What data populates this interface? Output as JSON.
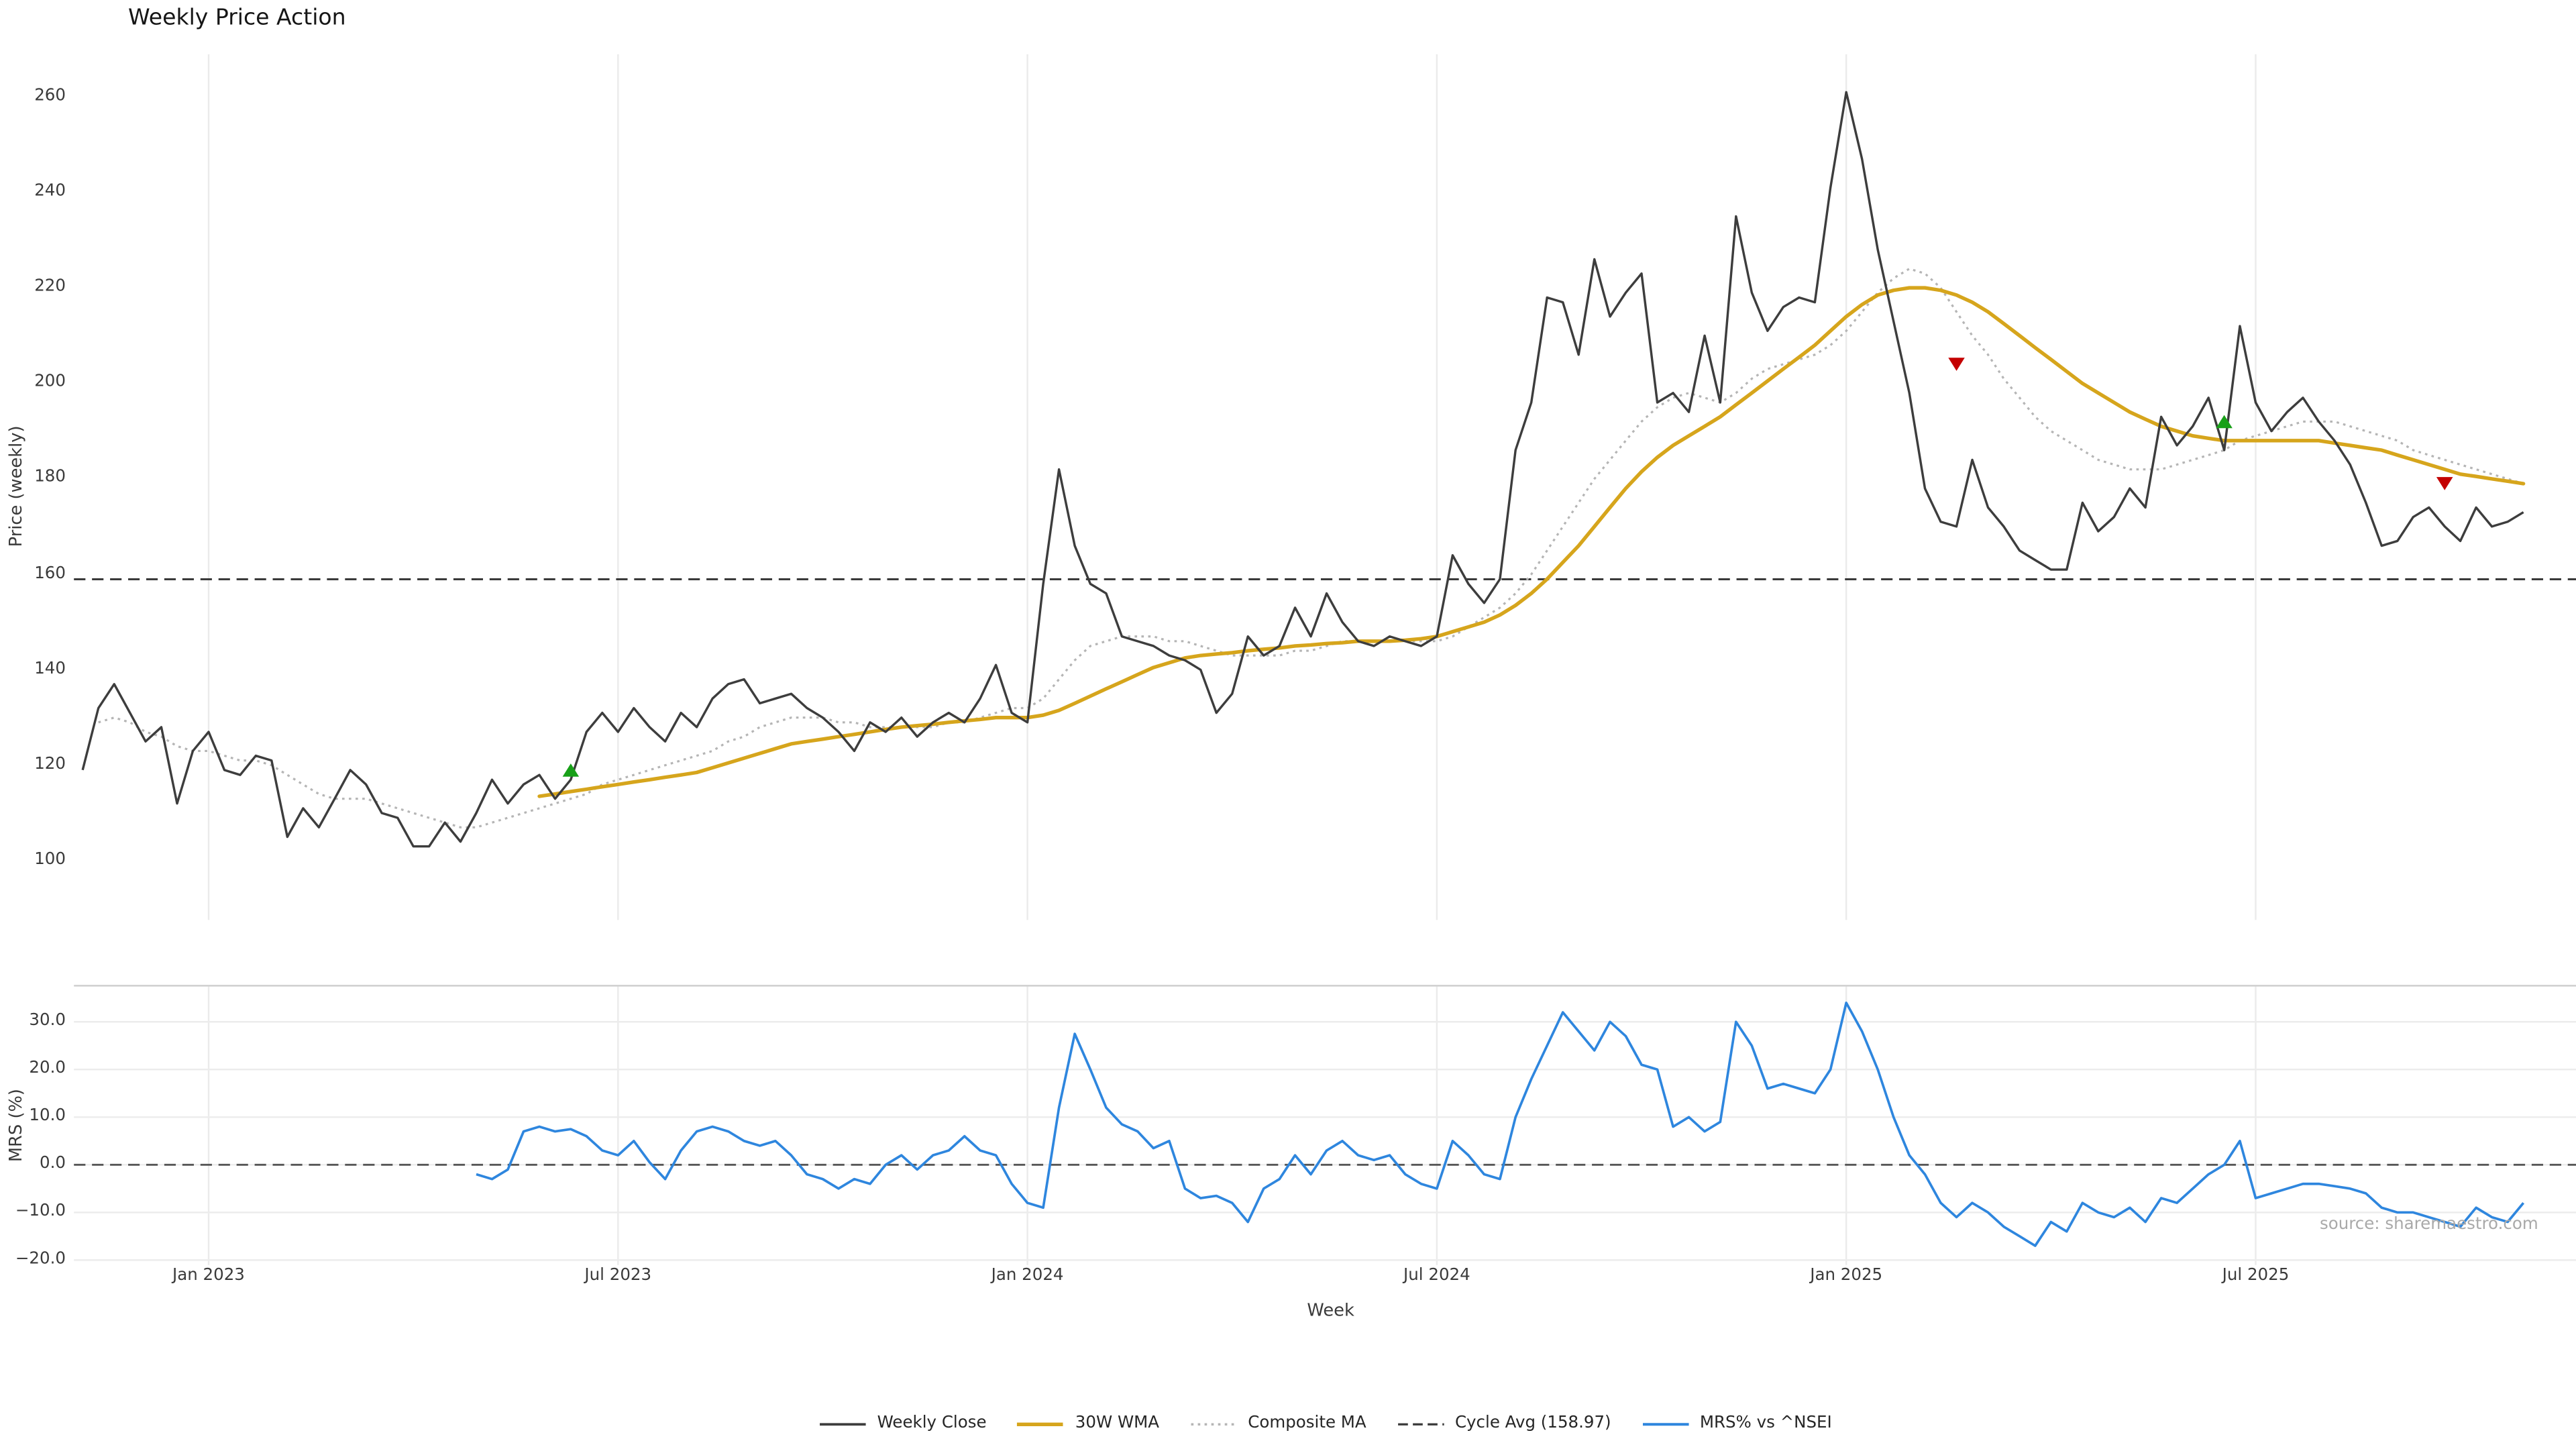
{
  "title": "Weekly Price Action",
  "watermark": "source: sharemaestro.com",
  "colors": {
    "close": "#3d3d3d",
    "wma": "#d6a51c",
    "composite": "#b5b5b5",
    "cycle_avg": "#3a3a3a",
    "mrs": "#2e86de",
    "buy": "#18a018",
    "sell": "#c40000",
    "grid": "#ebebeb",
    "mrs_grid": "#ececec",
    "zero_line": "#555555"
  },
  "legend": [
    {
      "label": "Weekly Close",
      "style": "solid",
      "color": "#3d3d3d",
      "width": 1.5
    },
    {
      "label": "30W WMA",
      "style": "solid",
      "color": "#d6a51c",
      "width": 2.2
    },
    {
      "label": "Composite MA",
      "style": "dotted",
      "color": "#b5b5b5",
      "width": 1.4
    },
    {
      "label": "Cycle Avg (158.97)",
      "style": "dashed",
      "color": "#3a3a3a",
      "width": 1.3
    },
    {
      "label": "MRS% vs ^NSEI",
      "style": "solid",
      "color": "#2e86de",
      "width": 1.6
    }
  ],
  "chart_data": [
    {
      "type": "line",
      "panel": "price",
      "title": "Weekly Price Action",
      "ylabel": "Price (weekly)",
      "ylim": [
        92,
        268
      ],
      "yticks": [
        100,
        120,
        140,
        160,
        180,
        200,
        220,
        240,
        260
      ],
      "x_tick_labels": [
        "Jan 2023",
        "Jul 2023",
        "Jan 2024",
        "Jul 2024",
        "Jan 2025",
        "Jul 2025"
      ],
      "x_tick_indices": [
        8,
        34,
        60,
        86,
        112,
        138
      ],
      "cycle_avg": 158.97,
      "grid": "vertical",
      "legend_position": "bottom",
      "series": [
        {
          "name": "Weekly Close",
          "start_index": 0,
          "values": [
            119,
            132,
            137,
            131,
            125,
            128,
            112,
            123,
            127,
            119,
            118,
            122,
            121,
            105,
            111,
            107,
            113,
            119,
            116,
            110,
            109,
            103,
            103,
            108,
            104,
            110,
            117,
            112,
            116,
            118,
            113,
            117,
            127,
            131,
            127,
            132,
            128,
            125,
            131,
            128,
            134,
            137,
            138,
            133,
            134,
            135,
            132,
            130,
            127,
            123,
            129,
            127,
            130,
            126,
            129,
            131,
            129,
            134,
            141,
            131,
            129,
            158,
            182,
            166,
            158,
            156,
            147,
            146,
            145,
            143,
            142,
            140,
            131,
            135,
            147,
            143,
            145,
            153,
            147,
            156,
            150,
            146,
            145,
            147,
            146,
            145,
            147,
            164,
            158,
            154,
            159,
            186,
            196,
            218,
            217,
            206,
            226,
            214,
            219,
            223,
            196,
            198,
            194,
            210,
            196,
            235,
            219,
            211,
            216,
            218,
            217,
            241,
            261,
            247,
            228,
            213,
            198,
            178,
            171,
            170,
            184,
            174,
            170,
            165,
            163,
            161,
            161,
            175,
            169,
            172,
            178,
            174,
            193,
            187,
            191,
            197,
            186,
            212,
            196,
            190,
            194,
            197,
            192,
            188,
            183,
            175,
            166,
            167,
            172,
            174,
            170,
            167,
            174,
            170,
            171,
            173
          ]
        },
        {
          "name": "30W WMA",
          "start_index": 29,
          "values": [
            113.5,
            114,
            114.5,
            115,
            115.5,
            116,
            116.5,
            117,
            117.5,
            118,
            118.5,
            119.5,
            120.5,
            121.5,
            122.5,
            123.5,
            124.5,
            125,
            125.5,
            126,
            126.5,
            127,
            127.5,
            128,
            128.3,
            128.6,
            129,
            129.3,
            129.6,
            130,
            130,
            130,
            130.5,
            131.5,
            133,
            134.5,
            136,
            137.5,
            139,
            140.5,
            141.5,
            142.5,
            143,
            143.3,
            143.6,
            144,
            144.3,
            144.6,
            145,
            145.2,
            145.5,
            145.7,
            146,
            146,
            146,
            146.2,
            146.5,
            147,
            148,
            149,
            150,
            151.5,
            153.5,
            156,
            159,
            162.5,
            166,
            170,
            174,
            178,
            181.5,
            184.5,
            187,
            189,
            191,
            193,
            195.5,
            198,
            200.5,
            203,
            205.5,
            208,
            211,
            214,
            216.5,
            218.5,
            219.5,
            220,
            220,
            219.5,
            218.5,
            217,
            215,
            212.5,
            210,
            207.5,
            205,
            202.5,
            200,
            198,
            196,
            194,
            192.5,
            191,
            190,
            189,
            188.5,
            188,
            188,
            188,
            188,
            188,
            188,
            188,
            187.5,
            187,
            186.5,
            186,
            185,
            184,
            183,
            182,
            181,
            180.5,
            180,
            179.5,
            179
          ]
        },
        {
          "name": "Composite MA",
          "start_index": 1,
          "values": [
            129,
            130,
            129,
            127,
            126,
            124,
            123,
            123,
            122,
            121,
            121,
            120,
            118,
            116,
            114,
            113,
            113,
            113,
            112,
            111,
            110,
            109,
            108,
            107,
            107,
            108,
            109,
            110,
            111,
            112,
            113,
            114,
            116,
            117,
            118,
            119,
            120,
            121,
            122,
            123,
            125,
            126,
            128,
            129,
            130,
            130,
            130,
            129,
            129,
            128,
            128,
            128,
            128,
            128,
            129,
            129,
            130,
            131,
            132,
            132,
            134,
            138,
            142,
            145,
            146,
            147,
            147,
            147,
            146,
            146,
            145,
            144,
            143,
            143,
            143,
            143,
            144,
            144,
            145,
            146,
            146,
            146,
            146,
            146,
            146,
            146,
            147,
            149,
            151,
            153,
            156,
            160,
            165,
            170,
            175,
            180,
            184,
            188,
            192,
            195,
            197,
            198,
            197,
            196,
            198,
            201,
            203,
            204,
            205,
            206,
            208,
            211,
            215,
            219,
            222,
            224,
            223,
            220,
            215,
            210,
            206,
            201,
            197,
            193,
            190,
            188,
            186,
            184,
            183,
            182,
            182,
            182,
            183,
            184,
            185,
            186,
            188,
            189,
            190,
            191,
            192,
            192,
            192,
            191,
            190,
            189,
            188,
            186,
            185,
            184,
            183,
            182,
            181,
            180,
            179
          ]
        }
      ],
      "signals": {
        "buy": [
          {
            "index": 31,
            "value": 119
          },
          {
            "index": 136,
            "value": 192
          }
        ],
        "sell": [
          {
            "index": 119,
            "value": 204
          },
          {
            "index": 150,
            "value": 179
          }
        ]
      }
    },
    {
      "type": "line",
      "panel": "mrs",
      "ylabel": "MRS (%)",
      "xlabel": "Week",
      "ylim": [
        -24,
        37
      ],
      "yticks": [
        30,
        20,
        10,
        0,
        -10,
        -20
      ],
      "ytick_labels": [
        "30.0",
        "20.0",
        "10.0",
        "0.0",
        "−10.0",
        "−20.0"
      ],
      "zero_line": 0,
      "grid": "both",
      "series": [
        {
          "name": "MRS% vs ^NSEI",
          "start_index": 25,
          "values": [
            -2,
            -3,
            -1,
            7,
            8,
            7,
            7.5,
            6,
            3,
            2,
            5,
            0.5,
            -3,
            3,
            7,
            8,
            7,
            5,
            4,
            5,
            2,
            -2,
            -3,
            -5,
            -3,
            -4,
            0,
            2,
            -1,
            2,
            3,
            6,
            3,
            2,
            -4,
            -8,
            -9,
            12,
            27.5,
            20,
            12,
            8.5,
            7,
            3.5,
            5,
            -5,
            -7,
            -6.5,
            -8,
            -12,
            -5,
            -3,
            2,
            -2,
            3,
            5,
            2,
            1,
            2,
            -2,
            -4,
            -5,
            5,
            2,
            -2,
            -3,
            10,
            18,
            25,
            32,
            28,
            24,
            30,
            27,
            21,
            20,
            8,
            10,
            7,
            9,
            30,
            25,
            16,
            17,
            16,
            15,
            20,
            34,
            28,
            20,
            10,
            2,
            -2,
            -8,
            -11,
            -8,
            -10,
            -13,
            -15,
            -17,
            -12,
            -14,
            -8,
            -10,
            -11,
            -9,
            -12,
            -7,
            -8,
            -5,
            -2,
            0,
            5,
            -7,
            -6,
            -5,
            -4,
            -4,
            -4.5,
            -5,
            -6,
            -9,
            -10,
            -10,
            -11,
            -12,
            -13,
            -9,
            -11,
            -12,
            -8
          ]
        }
      ]
    }
  ]
}
